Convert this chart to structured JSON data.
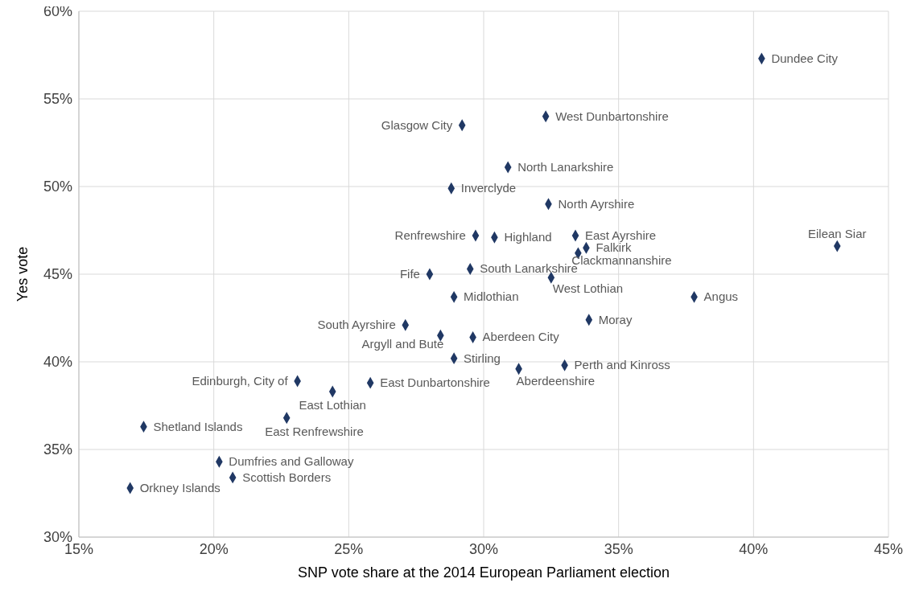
{
  "chart_data": {
    "type": "scatter",
    "xlabel": "SNP vote share at the 2014 European Parliament election",
    "ylabel": "Yes vote",
    "x": [
      40.3,
      32.3,
      29.2,
      30.9,
      28.8,
      32.4,
      29.7,
      30.4,
      33.4,
      33.8,
      33.5,
      43.1,
      29.5,
      28.0,
      32.5,
      28.9,
      37.8,
      33.9,
      27.1,
      28.4,
      29.6,
      28.9,
      31.3,
      33.0,
      23.1,
      24.4,
      25.8,
      22.7,
      17.4,
      20.2,
      20.7,
      16.9
    ],
    "series": [
      {
        "color": "#203864",
        "values": [
          57.3,
          54.0,
          53.5,
          51.1,
          49.9,
          49.0,
          47.2,
          47.1,
          47.2,
          46.5,
          46.2,
          46.6,
          45.3,
          45.0,
          44.8,
          43.7,
          43.7,
          42.4,
          42.1,
          41.5,
          41.4,
          40.2,
          39.6,
          39.8,
          38.9,
          38.3,
          38.8,
          36.8,
          36.3,
          34.3,
          33.4,
          32.8
        ]
      }
    ],
    "annotations": [
      {
        "text": "Dundee City",
        "x": 40.3,
        "y": 57.3
      },
      {
        "text": "West Dunbartonshire",
        "x": 32.3,
        "y": 54.0
      },
      {
        "text": "Glasgow City",
        "x": 29.2,
        "y": 53.5
      },
      {
        "text": "North Lanarkshire",
        "x": 30.9,
        "y": 51.1
      },
      {
        "text": "Inverclyde",
        "x": 28.8,
        "y": 49.9
      },
      {
        "text": "North Ayrshire",
        "x": 32.4,
        "y": 49.0
      },
      {
        "text": "Renfrewshire",
        "x": 29.7,
        "y": 47.2
      },
      {
        "text": "Highland",
        "x": 30.4,
        "y": 47.1
      },
      {
        "text": "East Ayrshire",
        "x": 33.4,
        "y": 47.2
      },
      {
        "text": "Falkirk",
        "x": 33.8,
        "y": 46.5
      },
      {
        "text": "Clackmannanshire",
        "x": 33.5,
        "y": 46.2
      },
      {
        "text": "Eilean Siar",
        "x": 43.1,
        "y": 46.6
      },
      {
        "text": "South Lanarkshire",
        "x": 29.5,
        "y": 45.3
      },
      {
        "text": "Fife",
        "x": 28.0,
        "y": 45.0
      },
      {
        "text": "West Lothian",
        "x": 32.5,
        "y": 44.8
      },
      {
        "text": "Midlothian",
        "x": 28.9,
        "y": 43.7
      },
      {
        "text": "Angus",
        "x": 37.8,
        "y": 43.7
      },
      {
        "text": "Moray",
        "x": 33.9,
        "y": 42.4
      },
      {
        "text": "South Ayrshire",
        "x": 27.1,
        "y": 42.1
      },
      {
        "text": "Argyll and Bute",
        "x": 28.4,
        "y": 41.5
      },
      {
        "text": "Aberdeen City",
        "x": 29.6,
        "y": 41.4
      },
      {
        "text": "Stirling",
        "x": 28.9,
        "y": 40.2
      },
      {
        "text": "Aberdeenshire",
        "x": 31.3,
        "y": 39.6
      },
      {
        "text": "Perth and Kinross",
        "x": 33.0,
        "y": 39.8
      },
      {
        "text": "Edinburgh, City of",
        "x": 23.1,
        "y": 38.9
      },
      {
        "text": "East Lothian",
        "x": 24.4,
        "y": 38.3
      },
      {
        "text": "East Dunbartonshire",
        "x": 25.8,
        "y": 38.8
      },
      {
        "text": "East Renfrewshire",
        "x": 22.7,
        "y": 36.8
      },
      {
        "text": "Shetland Islands",
        "x": 17.4,
        "y": 36.3
      },
      {
        "text": "Dumfries and Galloway",
        "x": 20.2,
        "y": 34.3
      },
      {
        "text": "Scottish Borders",
        "x": 20.7,
        "y": 33.4
      },
      {
        "text": "Orkney Islands",
        "x": 16.9,
        "y": 32.8
      }
    ],
    "xlim": [
      15,
      45
    ],
    "xticks": [
      {
        "value": 15,
        "label": "15%"
      },
      {
        "value": 20,
        "label": "20%"
      },
      {
        "value": 25,
        "label": "25%"
      },
      {
        "value": 30,
        "label": "30%"
      },
      {
        "value": 35,
        "label": "35%"
      },
      {
        "value": 40,
        "label": "40%"
      },
      {
        "value": 45,
        "label": "45%"
      }
    ],
    "ylim": [
      30,
      60
    ],
    "yticks": [
      {
        "value": 30,
        "label": "30%"
      },
      {
        "value": 35,
        "label": "35%"
      },
      {
        "value": 40,
        "label": "40%"
      },
      {
        "value": 45,
        "label": "45%"
      },
      {
        "value": 50,
        "label": "50%"
      },
      {
        "value": 55,
        "label": "55%"
      },
      {
        "value": 60,
        "label": "60%"
      }
    ],
    "grid": true,
    "marker": "diamond",
    "legend": false
  }
}
